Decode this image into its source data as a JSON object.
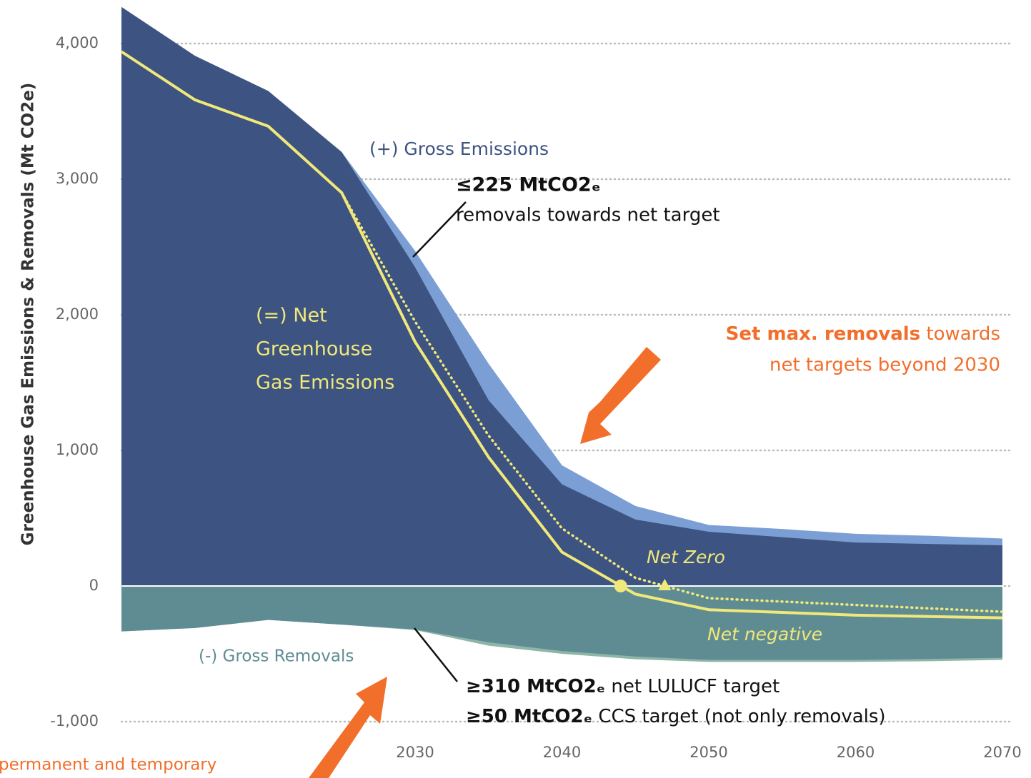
{
  "chart_data": {
    "type": "area",
    "y_label": "Greenhouse Gas Emissions & Removals (Mt CO2e)",
    "x": [
      2010,
      2015,
      2020,
      2025,
      2030,
      2035,
      2040,
      2045,
      2050,
      2055,
      2060,
      2065,
      2070
    ],
    "xlim": [
      2010,
      2070
    ],
    "xticks": [
      2030,
      2040,
      2050,
      2060,
      2070
    ],
    "ylim": [
      -1416,
      4321
    ],
    "yticks": [
      {
        "value": -1000,
        "label": "-1,000"
      },
      0,
      {
        "value": 1000,
        "label": "1,000"
      },
      {
        "value": 2000,
        "label": "2,000"
      },
      {
        "value": 3000,
        "label": "3,000"
      },
      {
        "value": 4000,
        "label": "4,000"
      }
    ],
    "grid": true,
    "series": [
      {
        "kind": "area",
        "color": "#7b9fd4",
        "values": [
          4270,
          3910,
          3650,
          3200,
          2470,
          1640,
          890,
          590,
          450,
          420,
          385,
          370,
          350
        ]
      },
      {
        "kind": "area",
        "color": "#3d5381",
        "values": [
          4270,
          3910,
          3650,
          3200,
          2350,
          1370,
          750,
          490,
          400,
          360,
          320,
          310,
          300
        ]
      },
      {
        "kind": "area",
        "color": "#8fb5a8",
        "values": [
          -335,
          -310,
          -250,
          -285,
          -325,
          -440,
          -500,
          -540,
          -560,
          -560,
          -560,
          -555,
          -545
        ]
      },
      {
        "kind": "area",
        "color": "#5f8c93",
        "values": [
          -335,
          -310,
          -250,
          -285,
          -320,
          -415,
          -480,
          -520,
          -545,
          -545,
          -545,
          -538,
          -530
        ]
      },
      {
        "kind": "line",
        "color": "#f0e87a",
        "values": [
          3940,
          3585,
          3390,
          2900,
          1800,
          950,
          250,
          -60,
          -175,
          -195,
          -215,
          -225,
          -235
        ]
      },
      {
        "kind": "dotted",
        "color": "#f0e87a",
        "values": [
          null,
          null,
          null,
          2900,
          1950,
          1110,
          425,
          60,
          -90,
          -115,
          -140,
          -165,
          -190
        ]
      }
    ],
    "markers": [
      {
        "x": 2044,
        "y": 0,
        "shape": "circle"
      },
      {
        "x": 2047,
        "y": 0,
        "shape": "triangle"
      }
    ],
    "annotations": {
      "gross_emissions": "(+) Gross Emissions",
      "net": [
        "(=) Net",
        "Greenhouse",
        "Gas Emissions"
      ],
      "gross_removals": "(-) Gross Removals",
      "net_zero": "Net Zero",
      "net_negative": "Net negative",
      "removals_cap": "≤225 MtCO2ₑ",
      "removals_cap_text": "removals towards net target",
      "set_max_bold": "Set max. removals",
      "set_max_rest": " towards",
      "set_max_line2": "net targets beyond 2030",
      "lulucf_bold": "≥310 MtCO2ₑ",
      "lulucf_rest": " net LULUCF target",
      "ccs_bold": "≥50 MtCO2ₑ",
      "ccs_rest": " CCS target (not only removals)",
      "permanent": "permanent and temporary"
    }
  }
}
